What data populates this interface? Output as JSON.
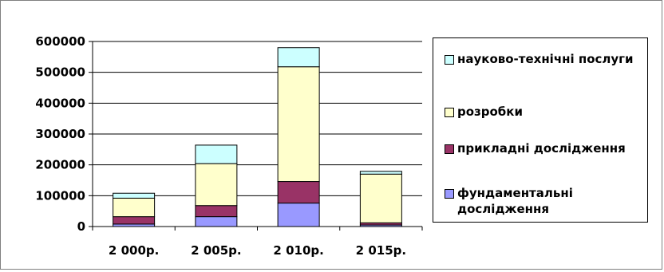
{
  "chart_data": {
    "type": "bar",
    "stacked": true,
    "categories": [
      "2 000р.",
      "2 005р.",
      "2 010р.",
      "2 015р."
    ],
    "series": [
      {
        "name": "фундаментальні дослідження",
        "color": "#9999ff",
        "values": [
          8000,
          32000,
          76000,
          5000
        ]
      },
      {
        "name": "прикладні дослідження",
        "color": "#993366",
        "values": [
          24000,
          36000,
          70000,
          7000
        ]
      },
      {
        "name": "розробки",
        "color": "#ffffcc",
        "values": [
          60000,
          136000,
          372000,
          158000
        ]
      },
      {
        "name": "науково-технічні послуги",
        "color": "#ccffff",
        "values": [
          16000,
          60000,
          62000,
          9000
        ]
      }
    ],
    "y_ticks": [
      "600000",
      "500000",
      "400000",
      "300000",
      "200000",
      "100000",
      "0"
    ],
    "ylim": [
      0,
      600000
    ],
    "grid": true,
    "legend_position": "right",
    "legend_order": [
      "науково-технічні послуги",
      "розробки",
      "прикладні дослідження",
      "фундаментальні дослідження"
    ]
  }
}
